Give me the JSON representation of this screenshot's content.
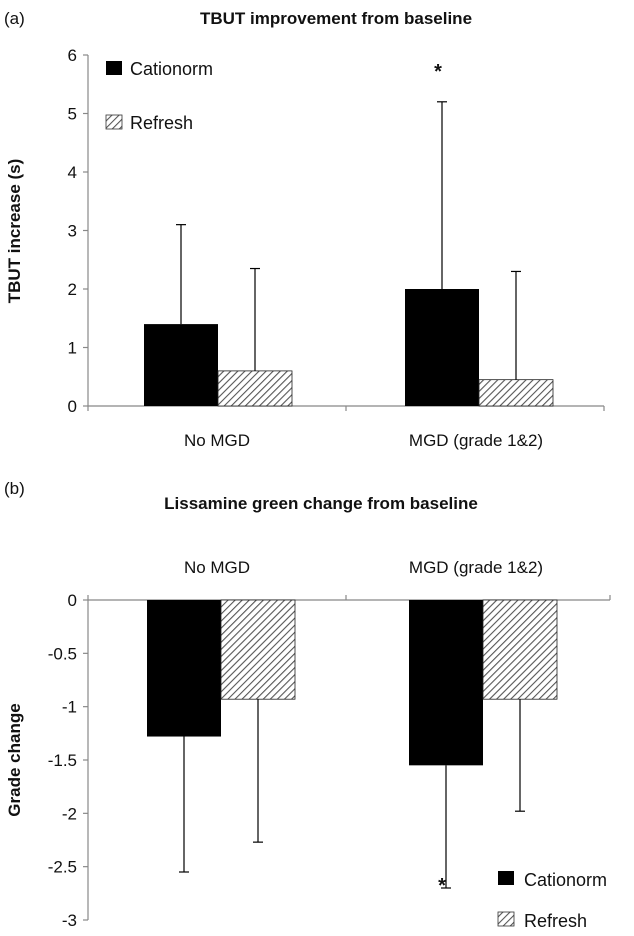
{
  "panels": {
    "a": {
      "label": "(a)",
      "title": "TBUT improvement from baseline"
    },
    "b": {
      "label": "(b)",
      "title": "Lissamine green change from baseline"
    }
  },
  "legend": {
    "cationorm": "Cationorm",
    "refresh": "Refresh"
  },
  "colors": {
    "cationorm": "#000000",
    "refresh_hatch": "#555555",
    "axis": "#888888",
    "error_bar": "#000000"
  },
  "chart_data": [
    {
      "type": "bar",
      "title": "TBUT improvement from baseline",
      "xlabel": "",
      "ylabel": "TBUT increase (s)",
      "categories": [
        "No MGD",
        "MGD (grade 1&2)"
      ],
      "ylim": [
        0,
        6
      ],
      "yticks": [
        0,
        1,
        2,
        3,
        4,
        5,
        6
      ],
      "series": [
        {
          "name": "Cationorm",
          "values": [
            1.4,
            2.0
          ],
          "error_upper": [
            3.1,
            5.2
          ]
        },
        {
          "name": "Refresh",
          "values": [
            0.6,
            0.45
          ],
          "error_upper": [
            2.35,
            2.3
          ]
        }
      ],
      "annotations": [
        {
          "text": "*",
          "category": "MGD (grade 1&2)",
          "series": "Cationorm"
        }
      ],
      "legend_position": "top-left",
      "grid": false
    },
    {
      "type": "bar",
      "title": "Lissamine green change from baseline",
      "xlabel": "",
      "ylabel": "Grade change",
      "categories": [
        "No MGD",
        "MGD (grade 1&2)"
      ],
      "ylim": [
        -3,
        0
      ],
      "yticks": [
        0,
        -0.5,
        -1,
        -1.5,
        -2,
        -2.5,
        -3
      ],
      "ytick_labels": [
        "0",
        "-0.5",
        "-1",
        "-1.5",
        "-2",
        "-2.5",
        "-3"
      ],
      "series": [
        {
          "name": "Cationorm",
          "values": [
            -1.28,
            -1.55
          ],
          "error_lower": [
            -2.55,
            -2.7
          ]
        },
        {
          "name": "Refresh",
          "values": [
            -0.93,
            -0.93
          ],
          "error_lower": [
            -2.27,
            -1.98
          ]
        }
      ],
      "annotations": [
        {
          "text": "*",
          "category": "MGD (grade 1&2)",
          "series": "Cationorm"
        }
      ],
      "legend_position": "bottom-right",
      "grid": false
    }
  ]
}
